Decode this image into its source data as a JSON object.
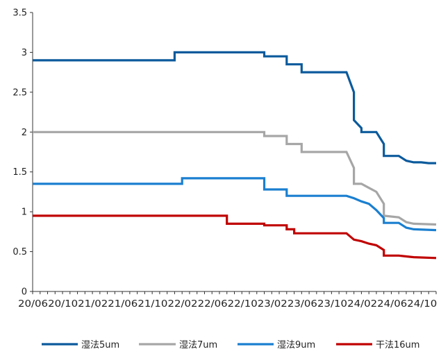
{
  "chart_data": {
    "type": "line",
    "title": "",
    "xlabel": "",
    "ylabel": "",
    "ylim": [
      0,
      3.5
    ],
    "yticks": [
      "0",
      "0.5",
      "1",
      "1.5",
      "2",
      "2.5",
      "3",
      "3.5"
    ],
    "xticks": [
      "20/06",
      "20/10",
      "21/02",
      "21/06",
      "21/10",
      "22/02",
      "22/06",
      "22/10",
      "23/02",
      "23/06",
      "23/10",
      "24/02",
      "24/06",
      "24/10"
    ],
    "grid": false,
    "legend_position": "bottom",
    "series": [
      {
        "name": "湿法5um",
        "color": "#0b5a9c",
        "points": [
          [
            "20/06",
            2.9
          ],
          [
            "22/01",
            2.9
          ],
          [
            "22/01",
            3.0
          ],
          [
            "23/01",
            3.0
          ],
          [
            "23/01",
            2.95
          ],
          [
            "23/04",
            2.95
          ],
          [
            "23/04",
            2.85
          ],
          [
            "23/06",
            2.85
          ],
          [
            "23/06",
            2.75
          ],
          [
            "23/12",
            2.75
          ],
          [
            "24/01",
            2.5
          ],
          [
            "24/01",
            2.15
          ],
          [
            "24/02",
            2.05
          ],
          [
            "24/02",
            2.0
          ],
          [
            "24/04",
            2.0
          ],
          [
            "24/05",
            1.85
          ],
          [
            "24/05",
            1.7
          ],
          [
            "24/07",
            1.7
          ],
          [
            "24/08",
            1.64
          ],
          [
            "24/09",
            1.62
          ],
          [
            "24/10",
            1.62
          ],
          [
            "24/11",
            1.61
          ],
          [
            "24/12",
            1.61
          ]
        ]
      },
      {
        "name": "湿法7um",
        "color": "#a6a6a6",
        "points": [
          [
            "20/06",
            2.0
          ],
          [
            "23/01",
            2.0
          ],
          [
            "23/01",
            1.95
          ],
          [
            "23/04",
            1.95
          ],
          [
            "23/04",
            1.85
          ],
          [
            "23/06",
            1.85
          ],
          [
            "23/06",
            1.75
          ],
          [
            "23/12",
            1.75
          ],
          [
            "24/01",
            1.55
          ],
          [
            "24/01",
            1.35
          ],
          [
            "24/02",
            1.35
          ],
          [
            "24/03",
            1.3
          ],
          [
            "24/04",
            1.25
          ],
          [
            "24/05",
            1.1
          ],
          [
            "24/05",
            0.95
          ],
          [
            "24/07",
            0.93
          ],
          [
            "24/08",
            0.87
          ],
          [
            "24/09",
            0.85
          ],
          [
            "24/12",
            0.84
          ]
        ]
      },
      {
        "name": "湿法9um",
        "color": "#1a7fd0",
        "points": [
          [
            "20/06",
            1.35
          ],
          [
            "22/02",
            1.35
          ],
          [
            "22/02",
            1.42
          ],
          [
            "23/01",
            1.42
          ],
          [
            "23/01",
            1.28
          ],
          [
            "23/04",
            1.28
          ],
          [
            "23/04",
            1.2
          ],
          [
            "23/12",
            1.2
          ],
          [
            "24/01",
            1.17
          ],
          [
            "24/02",
            1.13
          ],
          [
            "24/03",
            1.1
          ],
          [
            "24/04",
            1.02
          ],
          [
            "24/05",
            0.92
          ],
          [
            "24/05",
            0.86
          ],
          [
            "24/07",
            0.86
          ],
          [
            "24/08",
            0.8
          ],
          [
            "24/09",
            0.78
          ],
          [
            "24/12",
            0.77
          ]
        ]
      },
      {
        "name": "干法16um",
        "color": "#c00000",
        "points": [
          [
            "20/06",
            0.95
          ],
          [
            "22/08",
            0.95
          ],
          [
            "22/08",
            0.85
          ],
          [
            "23/01",
            0.85
          ],
          [
            "23/01",
            0.83
          ],
          [
            "23/04",
            0.83
          ],
          [
            "23/04",
            0.78
          ],
          [
            "23/05",
            0.78
          ],
          [
            "23/05",
            0.73
          ],
          [
            "23/12",
            0.73
          ],
          [
            "24/01",
            0.65
          ],
          [
            "24/02",
            0.63
          ],
          [
            "24/03",
            0.6
          ],
          [
            "24/04",
            0.58
          ],
          [
            "24/05",
            0.52
          ],
          [
            "24/05",
            0.45
          ],
          [
            "24/07",
            0.45
          ],
          [
            "24/08",
            0.44
          ],
          [
            "24/09",
            0.43
          ],
          [
            "24/12",
            0.42
          ]
        ]
      }
    ]
  }
}
